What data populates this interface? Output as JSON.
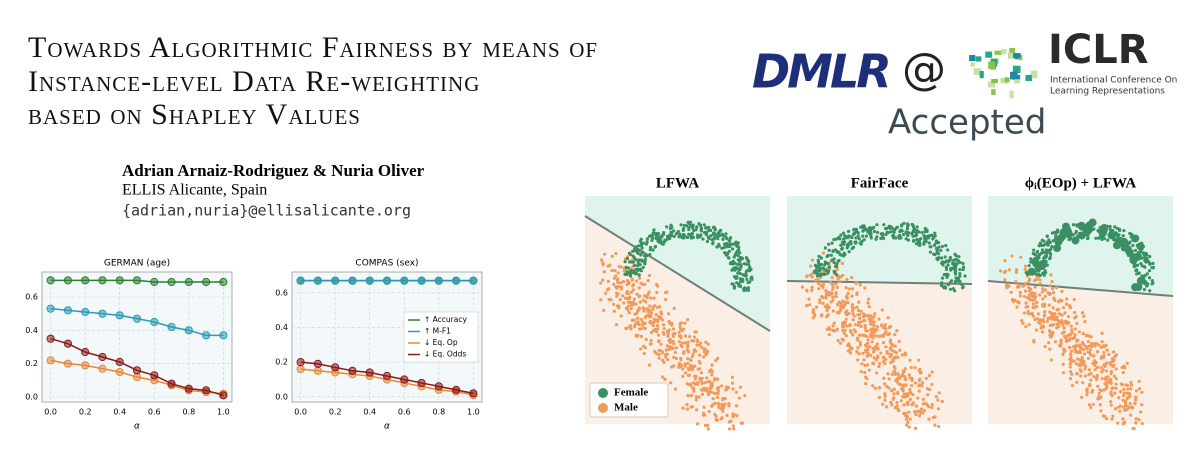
{
  "header": {
    "title_lines": [
      "Towards Algorithmic Fairness by means of",
      "Instance-level Data Re-weighting",
      "based on Shapley Values"
    ],
    "authors": "Adrian Arnaiz-Rodriguez & Nuria Oliver",
    "affiliation": "ELLIS Alicante, Spain",
    "email": "{adrian,nuria}@ellisalicante.org"
  },
  "badge": {
    "venue": "DMLR",
    "at": "@",
    "conference": "ICLR",
    "conference_full_lines": [
      "International Conference On",
      "Learning Representations"
    ],
    "status": "Accepted"
  },
  "chart_data": [
    {
      "type": "line",
      "title": "GERMAN (age)",
      "x_label": "α",
      "x": [
        0,
        0.1,
        0.2,
        0.3,
        0.4,
        0.5,
        0.6,
        0.7,
        0.8,
        0.9,
        1.0
      ],
      "xlim": [
        -0.05,
        1.05
      ],
      "xticks": [
        {
          "value": 0,
          "label": "0.0"
        },
        0.2,
        0.4,
        0.6,
        0.8,
        {
          "value": 1,
          "label": "1.0"
        }
      ],
      "ylim": [
        -0.03,
        0.75
      ],
      "yticks": [
        {
          "value": 0,
          "label": "0.0"
        },
        0.2,
        0.4,
        0.6
      ],
      "grid": true,
      "series": [
        {
          "color": "#2e7d32",
          "values": [
            0.7,
            0.7,
            0.7,
            0.7,
            0.7,
            0.7,
            0.69,
            0.69,
            0.69,
            0.69,
            0.69
          ]
        },
        {
          "color": "#2a9bb5",
          "values": [
            0.53,
            0.52,
            0.51,
            0.5,
            0.49,
            0.47,
            0.45,
            0.42,
            0.4,
            0.37,
            0.37
          ]
        },
        {
          "color": "#e8883a",
          "values": [
            0.22,
            0.2,
            0.19,
            0.17,
            0.15,
            0.12,
            0.1,
            0.07,
            0.04,
            0.03,
            0.02
          ]
        },
        {
          "color": "#8b1a1a",
          "values": [
            0.35,
            0.32,
            0.27,
            0.24,
            0.21,
            0.16,
            0.13,
            0.08,
            0.05,
            0.04,
            0.01
          ]
        }
      ]
    },
    {
      "type": "line",
      "title": "COMPAS (sex)",
      "x_label": "α",
      "x": [
        0,
        0.1,
        0.2,
        0.3,
        0.4,
        0.5,
        0.6,
        0.7,
        0.8,
        0.9,
        1.0
      ],
      "xlim": [
        -0.05,
        1.05
      ],
      "xticks": [
        {
          "value": 0,
          "label": "0.0"
        },
        0.2,
        0.4,
        0.6,
        0.8,
        {
          "value": 1,
          "label": "1.0"
        }
      ],
      "ylim": [
        -0.03,
        0.72
      ],
      "yticks": [
        {
          "value": 0,
          "label": "0.0"
        },
        0.2,
        0.4,
        0.6
      ],
      "grid": true,
      "legend": "right",
      "series": [
        {
          "name": "↑ Accuracy",
          "color": "#2e7d32",
          "values": [
            0.67,
            0.67,
            0.67,
            0.67,
            0.67,
            0.67,
            0.67,
            0.67,
            0.67,
            0.67,
            0.67
          ]
        },
        {
          "name": "↑ M-F1",
          "color": "#2a9bb5",
          "values": [
            0.67,
            0.67,
            0.67,
            0.67,
            0.67,
            0.67,
            0.67,
            0.67,
            0.67,
            0.67,
            0.67
          ]
        },
        {
          "name": "↓ Eq. Op",
          "color": "#e8883a",
          "values": [
            0.16,
            0.15,
            0.14,
            0.13,
            0.12,
            0.1,
            0.08,
            0.06,
            0.04,
            0.03,
            0.01
          ]
        },
        {
          "name": "↓ Eq. Odds",
          "color": "#8b1a1a",
          "values": [
            0.2,
            0.19,
            0.17,
            0.15,
            0.14,
            0.12,
            0.1,
            0.08,
            0.06,
            0.04,
            0.02
          ]
        }
      ]
    }
  ],
  "embeddings": {
    "panel_titles": [
      "LFWA",
      "FairFace",
      "ϕᵢ(EOp) + LFWA"
    ],
    "legend": [
      "Female",
      "Male"
    ]
  }
}
